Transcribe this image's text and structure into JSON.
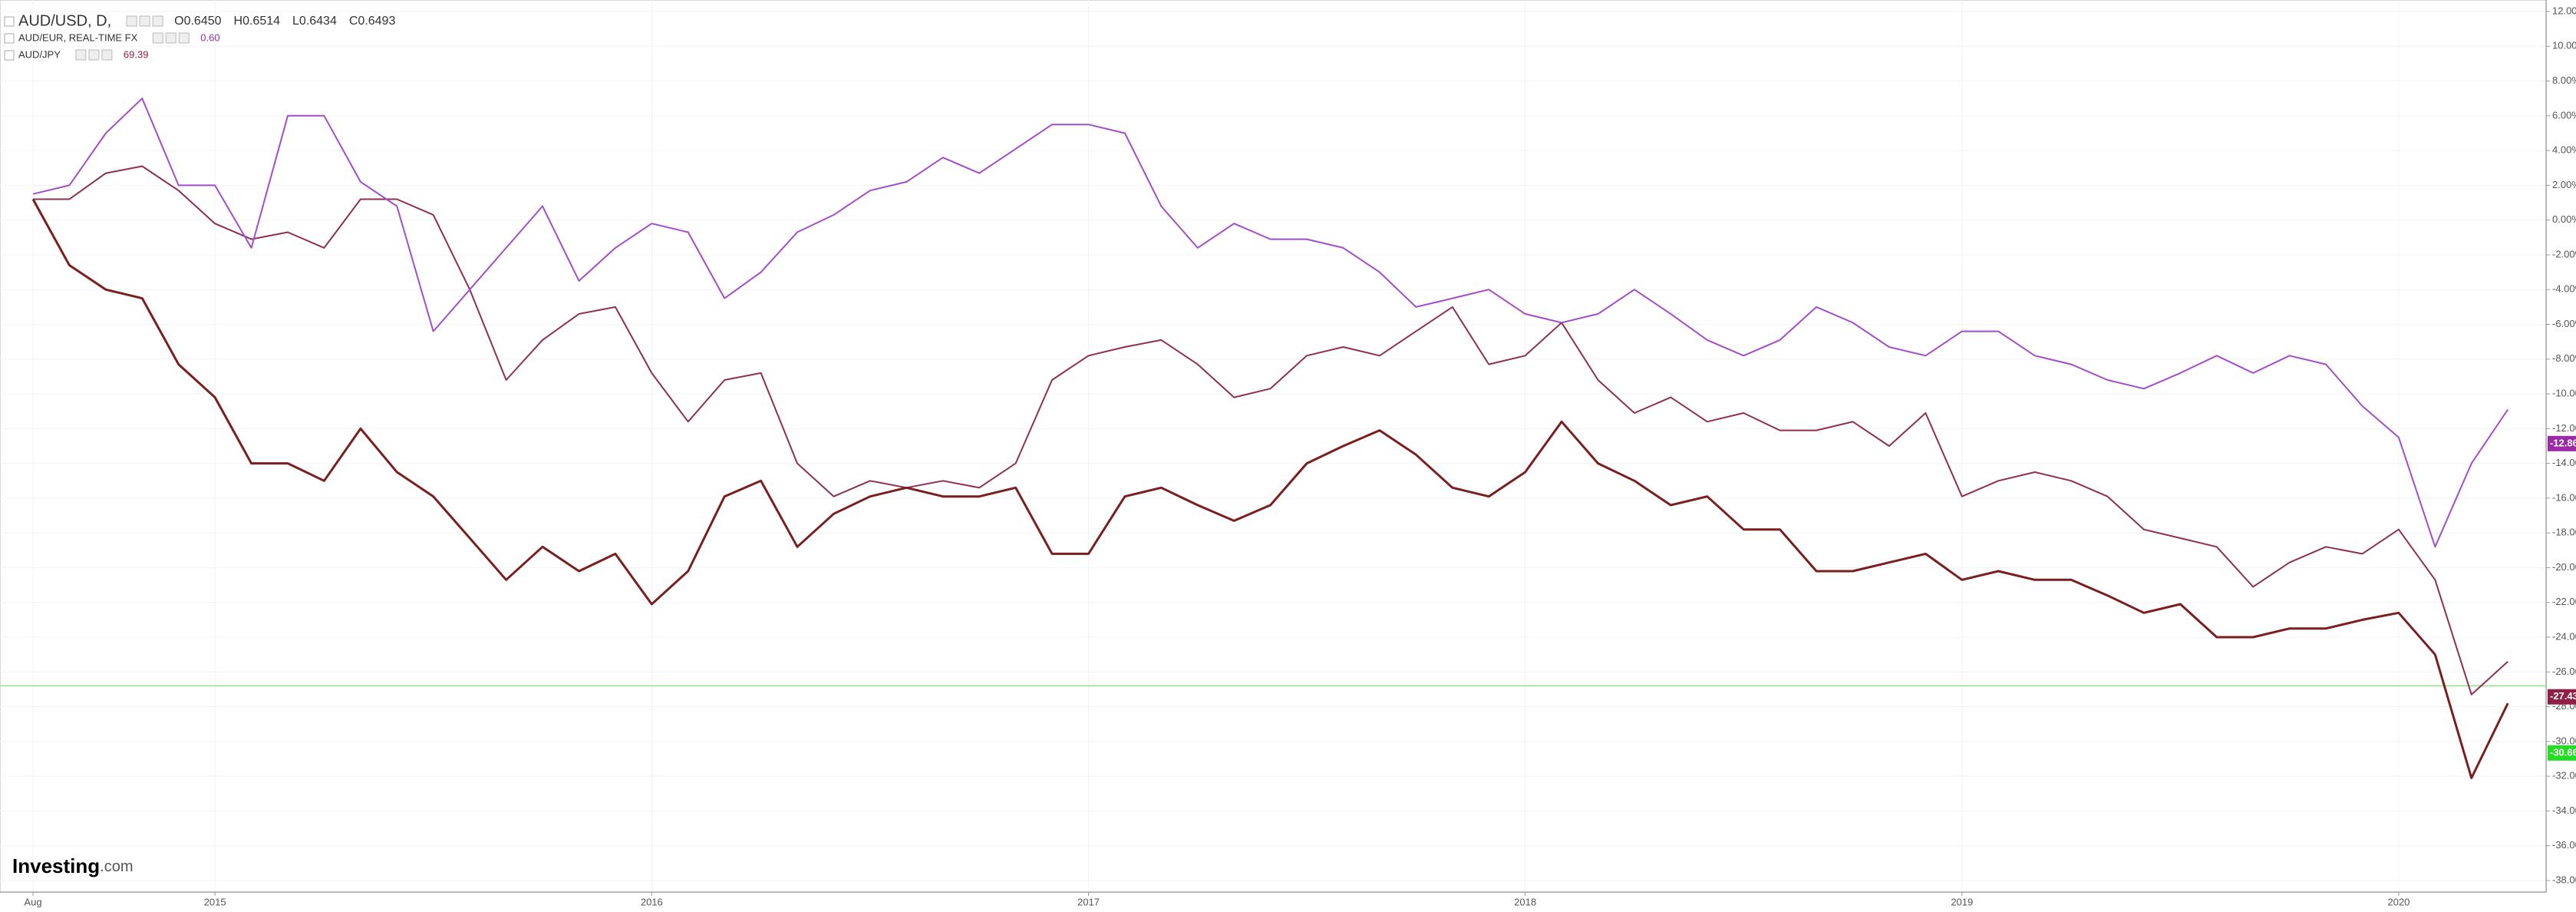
{
  "chart_data": {
    "type": "line",
    "logo": [
      "Investing",
      ".com"
    ],
    "categories": [
      "Aug",
      null,
      null,
      null,
      null,
      "2015",
      null,
      null,
      null,
      null,
      null,
      null,
      null,
      null,
      null,
      null,
      null,
      "2016",
      null,
      null,
      null,
      null,
      null,
      null,
      null,
      null,
      null,
      null,
      null,
      "2017",
      null,
      null,
      null,
      null,
      null,
      null,
      null,
      null,
      null,
      null,
      null,
      "2018",
      null,
      null,
      null,
      null,
      null,
      null,
      null,
      null,
      null,
      null,
      null,
      "2019",
      null,
      null,
      null,
      null,
      null,
      null,
      null,
      null,
      null,
      null,
      null,
      "2020",
      null,
      null,
      null
    ],
    "series": [
      {
        "name": "AUD/USD, D,",
        "color": "#7a1f1f",
        "header": [
          "O0.6450",
          "H0.6514",
          "L0.6434",
          "C0.6493"
        ],
        "tag": {
          "value": -30.66,
          "label": "-30.66%"
        },
        "tag_color": "#22dd22",
        "values": [
          1.2,
          -2.6,
          -4,
          -4.5,
          -8.3,
          -10.2,
          -14,
          -14,
          -15,
          -12,
          -14.5,
          -15.9,
          -18.3,
          -20.7,
          -18.8,
          -20.2,
          -19.2,
          -22.1,
          -20.2,
          -15.9,
          -15,
          -18.8,
          -16.9,
          -15.9,
          -15.4,
          -15.9,
          -15.9,
          -15.4,
          -19.2,
          -19.2,
          -15.9,
          -15.4,
          -16.4,
          -17.3,
          -16.4,
          -14,
          -13,
          -12.1,
          -13.5,
          -15.4,
          -15.9,
          -14.5,
          -11.6,
          -14,
          -15,
          -16.4,
          -15.9,
          -17.8,
          -17.8,
          -20.2,
          -20.2,
          -19.7,
          -19.2,
          -20.7,
          -20.2,
          -20.7,
          -20.7,
          -21.6,
          -22.6,
          -22.1,
          -24,
          -24,
          -23.5,
          -23.5,
          -23,
          -22.6,
          -25,
          -32.1,
          -27.8
        ]
      },
      {
        "name": "AUD/EUR, REAL-TIME FX",
        "color": "#a24ec8",
        "header": [
          "0.60"
        ],
        "tag": {
          "value": -12.86,
          "label": "-12.86%"
        },
        "tag_color": "#9c2aa8",
        "values": [
          1.5,
          2,
          5,
          7,
          2,
          2,
          -1.6,
          6,
          6,
          2.2,
          0.8,
          -6.4,
          -4,
          -1.6,
          0.8,
          -3.5,
          -1.6,
          -0.2,
          -0.7,
          -4.5,
          -3,
          -0.7,
          0.3,
          1.7,
          2.2,
          3.6,
          2.7,
          4.1,
          5.5,
          5.5,
          5,
          0.8,
          -1.6,
          -0.2,
          -1.1,
          -1.1,
          -1.6,
          -3,
          -5,
          -4.5,
          -4,
          -5.4,
          -5.9,
          -5.4,
          -4,
          -5.4,
          -6.9,
          -7.8,
          -6.9,
          -5,
          -5.9,
          -7.3,
          -7.8,
          -6.4,
          -6.4,
          -7.8,
          -8.3,
          -9.2,
          -9.7,
          -8.8,
          -7.8,
          -8.8,
          -7.8,
          -8.3,
          -10.7,
          -12.5,
          -18.8,
          -14,
          -10.9
        ]
      },
      {
        "name": "AUD/JPY",
        "color": "#8e2f55",
        "header": [
          "69.39"
        ],
        "tag": {
          "value": -27.43,
          "label": "-27.43%"
        },
        "tag_color": "#8e1f45",
        "values": [
          1.2,
          1.2,
          2.7,
          3.1,
          1.7,
          -0.2,
          -1.1,
          -0.7,
          -1.6,
          1.2,
          1.2,
          0.3,
          -4,
          -9.2,
          -6.9,
          -5.4,
          -5,
          -8.8,
          -11.6,
          -9.2,
          -8.8,
          -14,
          -15.9,
          -15,
          -15.4,
          -15,
          -15.4,
          -14,
          -9.2,
          -7.8,
          -7.3,
          -6.9,
          -8.3,
          -10.2,
          -9.7,
          -7.8,
          -7.3,
          -7.8,
          -6.4,
          -5,
          -8.3,
          -7.8,
          -5.9,
          -9.2,
          -11.1,
          -10.2,
          -11.6,
          -11.1,
          -12.1,
          -12.1,
          -11.6,
          -13,
          -11.1,
          -15.9,
          -15,
          -14.5,
          -15,
          -15.9,
          -17.8,
          -18.3,
          -18.8,
          -21.1,
          -19.7,
          -18.8,
          -19.2,
          -17.8,
          -20.7,
          -27.3,
          -25.4
        ]
      }
    ],
    "hline": -26.8,
    "hline_color": "#a8e6a0",
    "ylim": [
      12,
      -38
    ],
    "grid": true,
    "yticks": [
      {
        "value": 12,
        "label": "12.00%"
      },
      {
        "value": 10,
        "label": "10.00%"
      },
      {
        "value": 8,
        "label": "8.00%"
      },
      {
        "value": 6,
        "label": "6.00%"
      },
      {
        "value": 4,
        "label": "4.00%"
      },
      {
        "value": 2,
        "label": "2.00%"
      },
      {
        "value": 0,
        "label": "0.00%"
      },
      {
        "value": -2,
        "label": "-2.00%"
      },
      {
        "value": -4,
        "label": "-4.00%"
      },
      {
        "value": -6,
        "label": "-6.00%"
      },
      {
        "value": -8,
        "label": "-8.00%"
      },
      {
        "value": -10,
        "label": "-10.00%"
      },
      {
        "value": -12,
        "label": "-12.00%"
      },
      {
        "value": -14,
        "label": "-14.00%"
      },
      {
        "value": -16,
        "label": "-16.00%"
      },
      {
        "value": -18,
        "label": "-18.00%"
      },
      {
        "value": -20,
        "label": "-20.00%"
      },
      {
        "value": -22,
        "label": "-22.00%"
      },
      {
        "value": -24,
        "label": "-24.00%"
      },
      {
        "value": -26,
        "label": "-26.00%"
      },
      {
        "value": -28,
        "label": "-28.00%"
      },
      {
        "value": -30,
        "label": "-30.00%"
      },
      {
        "value": -32,
        "label": "-32.00%"
      },
      {
        "value": -34,
        "label": "-34.00%"
      },
      {
        "value": -36,
        "label": "-36.00%"
      },
      {
        "value": -38,
        "label": "-38.00%"
      }
    ]
  }
}
